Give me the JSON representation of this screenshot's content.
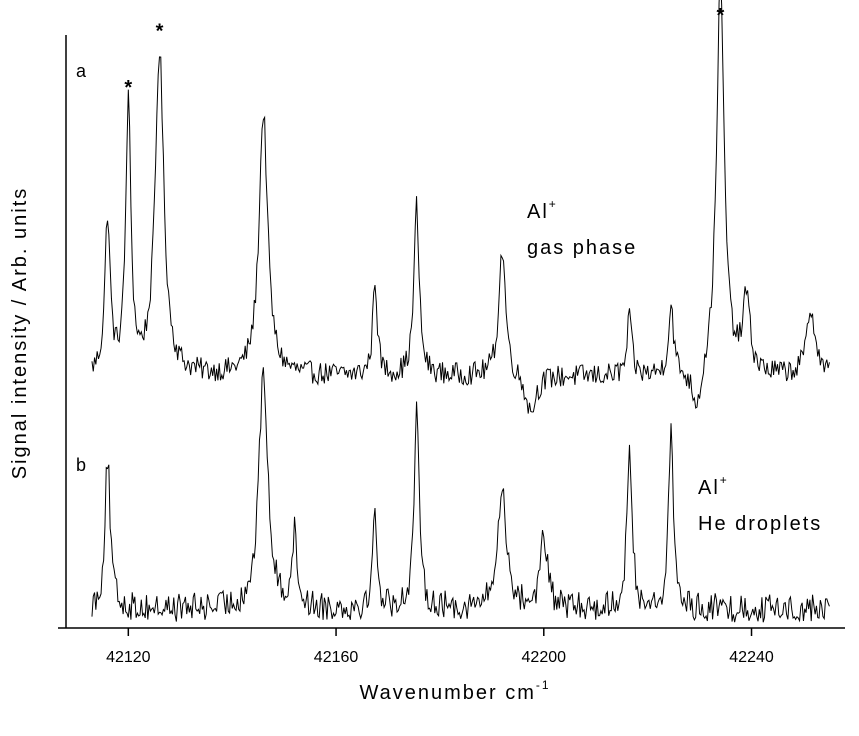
{
  "chart_data": {
    "type": "line",
    "xlabel": "Wavenumber cm",
    "xlabel_superscript": "-1",
    "ylabel": "Signal intensity / Arb. units",
    "xlim": [
      42108,
      42258
    ],
    "x_ticks": [
      42120,
      42160,
      42200,
      42240
    ],
    "grid": false,
    "series": [
      {
        "name": "Al⁺ gas phase",
        "panel_label": "a",
        "annotation_line1": "Al",
        "annotation_sup": "+",
        "annotation_line2": "gas phase",
        "x_range": [
          42113,
          42255
        ],
        "baseline": 0.27,
        "noise": 0.06,
        "peaks": [
          {
            "x": 42116.0,
            "h": 0.83,
            "w": 0.6
          },
          {
            "x": 42120.0,
            "h": 1.42,
            "w": 0.6
          },
          {
            "x": 42126.0,
            "h": 1.72,
            "w": 1.0
          },
          {
            "x": 42146.0,
            "h": 1.4,
            "w": 1.0
          },
          {
            "x": 42167.5,
            "h": 0.52,
            "w": 0.5
          },
          {
            "x": 42175.5,
            "h": 0.9,
            "w": 0.6
          },
          {
            "x": 42192.0,
            "h": 0.68,
            "w": 0.8
          },
          {
            "x": 42216.5,
            "h": 0.32,
            "w": 0.5
          },
          {
            "x": 42224.5,
            "h": 0.37,
            "w": 0.6
          },
          {
            "x": 42234.0,
            "h": 2.1,
            "w": 0.9
          },
          {
            "x": 42239.0,
            "h": 0.4,
            "w": 0.8
          },
          {
            "x": 42251.5,
            "h": 0.35,
            "w": 1.0
          }
        ],
        "dips": [
          {
            "x": 42197.5,
            "h": 0.2,
            "w": 1.2
          },
          {
            "x": 42229.5,
            "h": 0.22,
            "w": 1.2
          }
        ],
        "starred_peaks": [
          42120.0,
          42126.0,
          42234.0
        ],
        "star_symbol": "*"
      },
      {
        "name": "Al⁺ He droplets",
        "panel_label": "b",
        "annotation_line1": "Al",
        "annotation_sup": "+",
        "annotation_line2": "He droplets",
        "x_range": [
          42113,
          42255
        ],
        "baseline": 0.12,
        "noise": 0.09,
        "peaks": [
          {
            "x": 42116.0,
            "h": 0.95,
            "w": 0.6
          },
          {
            "x": 42146.0,
            "h": 1.5,
            "w": 1.0
          },
          {
            "x": 42152.0,
            "h": 0.45,
            "w": 0.6
          },
          {
            "x": 42167.5,
            "h": 0.6,
            "w": 0.5
          },
          {
            "x": 42175.5,
            "h": 1.2,
            "w": 0.6
          },
          {
            "x": 42192.0,
            "h": 0.75,
            "w": 1.0
          },
          {
            "x": 42200.0,
            "h": 0.45,
            "w": 0.8
          },
          {
            "x": 42216.5,
            "h": 0.95,
            "w": 0.6
          },
          {
            "x": 42224.5,
            "h": 1.2,
            "w": 0.5
          }
        ],
        "dips": []
      }
    ]
  }
}
